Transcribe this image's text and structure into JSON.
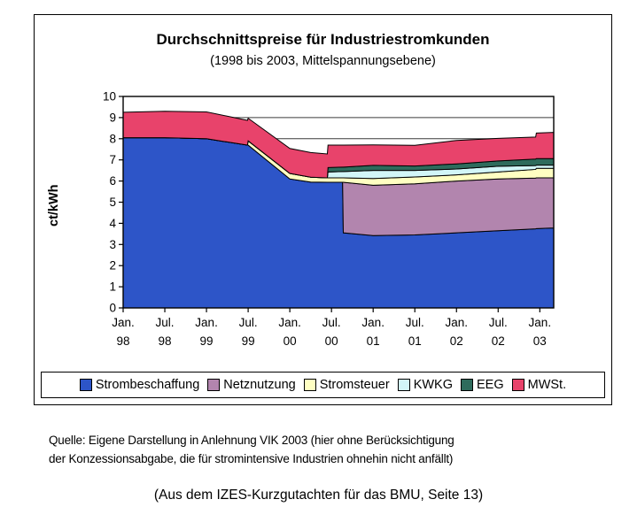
{
  "chart_data": {
    "type": "area",
    "stacked": true,
    "title": "Durchschnittspreise für Industriestromkunden",
    "subtitle": "(1998 bis 2003, Mittelspannungsebene)",
    "ylabel": "ct/kWh",
    "ylim": [
      0,
      10
    ],
    "y_tick_labels": [
      "0",
      "1",
      "2",
      "3",
      "4",
      "5",
      "6",
      "7",
      "8",
      "9",
      "10"
    ],
    "grid": true,
    "legend_position": "bottom",
    "x_unit": "months since Jan 1998",
    "x_range": [
      0,
      62
    ],
    "x_ticks": [
      {
        "month": 0,
        "line1": "Jan.",
        "line2": "98"
      },
      {
        "month": 6,
        "line1": "Jul.",
        "line2": "98"
      },
      {
        "month": 12,
        "line1": "Jan.",
        "line2": "99"
      },
      {
        "month": 18,
        "line1": "Jul.",
        "line2": "99"
      },
      {
        "month": 24,
        "line1": "Jan.",
        "line2": "00"
      },
      {
        "month": 30,
        "line1": "Jul.",
        "line2": "00"
      },
      {
        "month": 36,
        "line1": "Jan.",
        "line2": "01"
      },
      {
        "month": 42,
        "line1": "Jul.",
        "line2": "01"
      },
      {
        "month": 48,
        "line1": "Jan.",
        "line2": "02"
      },
      {
        "month": 54,
        "line1": "Jul.",
        "line2": "02"
      },
      {
        "month": 60,
        "line1": "Jan.",
        "line2": "03"
      }
    ],
    "x_breakpoints": [
      0,
      6,
      12,
      17.9,
      18,
      24,
      27,
      29.4,
      29.5,
      31.6,
      31.7,
      36,
      42,
      48,
      54,
      59.4,
      59.5,
      62
    ],
    "series": [
      {
        "name": "Strombeschaffung",
        "color": "#2D55C8",
        "values": [
          8.05,
          8.05,
          8.0,
          7.7,
          7.7,
          6.1,
          5.95,
          5.94,
          5.94,
          5.94,
          3.55,
          3.42,
          3.45,
          3.55,
          3.65,
          3.74,
          3.75,
          3.78
        ]
      },
      {
        "name": "Netznutzung",
        "color": "#B285AE",
        "values": [
          0,
          0,
          0,
          0,
          0,
          0,
          0,
          0,
          0,
          0,
          2.39,
          2.38,
          2.42,
          2.45,
          2.45,
          2.4,
          2.4,
          2.37
        ]
      },
      {
        "name": "Stromsteuer",
        "color": "#FFFFC2",
        "values": [
          0,
          0,
          0,
          0,
          0.2,
          0.26,
          0.23,
          0.21,
          0.21,
          0.21,
          0.21,
          0.32,
          0.32,
          0.29,
          0.33,
          0.41,
          0.45,
          0.45
        ]
      },
      {
        "name": "KWKG",
        "color": "#D2F6F8",
        "values": [
          0,
          0,
          0,
          0,
          0,
          0,
          0,
          0,
          0.28,
          0.3,
          0.3,
          0.38,
          0.31,
          0.28,
          0.27,
          0.18,
          0.15,
          0.15
        ]
      },
      {
        "name": "EEG",
        "color": "#2E6B5C",
        "values": [
          0,
          0,
          0,
          0,
          0,
          0,
          0,
          0,
          0.21,
          0.21,
          0.21,
          0.24,
          0.21,
          0.24,
          0.25,
          0.31,
          0.31,
          0.31
        ]
      },
      {
        "name": "MWSt.",
        "color": "#E8436B",
        "values": [
          1.2,
          1.25,
          1.27,
          1.17,
          1.07,
          1.18,
          1.17,
          1.13,
          1.06,
          1.04,
          1.04,
          0.97,
          0.98,
          1.11,
          1.07,
          1.04,
          1.21,
          1.24
        ]
      }
    ]
  },
  "footer": {
    "source_note_line1": "Quelle: Eigene Darstellung in Anlehnung VIK 2003 (hier ohne Berücksichtigung",
    "source_note_line2": "der Konzessionsabgabe, die für stromintensive Industrien ohnehin nicht anfällt)",
    "caption": "(Aus dem IZES-Kurzgutachten für das BMU, Seite 13)"
  }
}
